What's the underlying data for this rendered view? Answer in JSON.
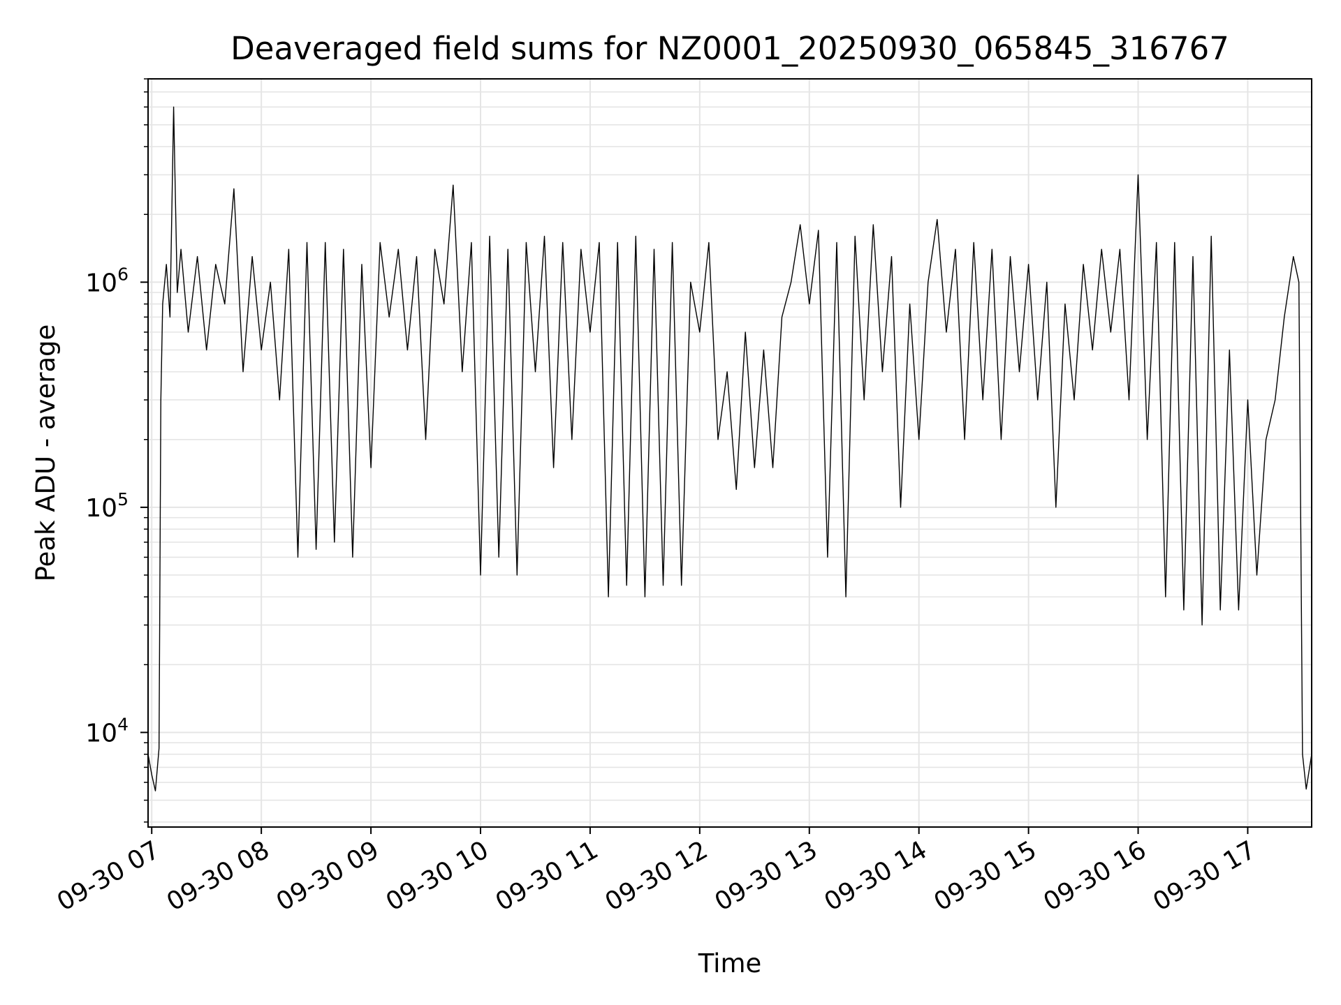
{
  "chart_data": {
    "type": "line",
    "title": "Deaveraged field sums for NZ0001_20250930_065845_316767",
    "xlabel": "Time",
    "ylabel": "Peak ADU - average",
    "y_scale": "log",
    "ylim": [
      3800,
      8000000
    ],
    "xlim": [
      "09-30 06:58",
      "09-30 17:35"
    ],
    "grid": true,
    "line_color": "#000000",
    "grid_color": "#e5e5e5",
    "x_ticks": [
      {
        "t": "09-30 07:00",
        "label": "09-30 07"
      },
      {
        "t": "09-30 08:00",
        "label": "09-30 08"
      },
      {
        "t": "09-30 09:00",
        "label": "09-30 09"
      },
      {
        "t": "09-30 10:00",
        "label": "09-30 10"
      },
      {
        "t": "09-30 11:00",
        "label": "09-30 11"
      },
      {
        "t": "09-30 12:00",
        "label": "09-30 12"
      },
      {
        "t": "09-30 13:00",
        "label": "09-30 13"
      },
      {
        "t": "09-30 14:00",
        "label": "09-30 14"
      },
      {
        "t": "09-30 15:00",
        "label": "09-30 15"
      },
      {
        "t": "09-30 16:00",
        "label": "09-30 16"
      },
      {
        "t": "09-30 17:00",
        "label": "09-30 17"
      }
    ],
    "y_ticks": [
      {
        "value": 10000,
        "base": "10",
        "exp": "4"
      },
      {
        "value": 100000,
        "base": "10",
        "exp": "5"
      },
      {
        "value": 1000000,
        "base": "10",
        "exp": "6"
      }
    ],
    "series": [
      {
        "points": [
          [
            "09-30 06:58",
            8000
          ],
          [
            "09-30 07:00",
            6500
          ],
          [
            "09-30 07:02",
            5500
          ],
          [
            "09-30 07:04",
            8500
          ],
          [
            "09-30 07:05",
            300000
          ],
          [
            "09-30 07:06",
            800000
          ],
          [
            "09-30 07:08",
            1200000
          ],
          [
            "09-30 07:10",
            700000
          ],
          [
            "09-30 07:12",
            6000000
          ],
          [
            "09-30 07:14",
            900000
          ],
          [
            "09-30 07:16",
            1400000
          ],
          [
            "09-30 07:20",
            600000
          ],
          [
            "09-30 07:25",
            1300000
          ],
          [
            "09-30 07:30",
            500000
          ],
          [
            "09-30 07:35",
            1200000
          ],
          [
            "09-30 07:40",
            800000
          ],
          [
            "09-30 07:45",
            2600000
          ],
          [
            "09-30 07:50",
            400000
          ],
          [
            "09-30 07:55",
            1300000
          ],
          [
            "09-30 08:00",
            500000
          ],
          [
            "09-30 08:05",
            1000000
          ],
          [
            "09-30 08:10",
            300000
          ],
          [
            "09-30 08:15",
            1400000
          ],
          [
            "09-30 08:20",
            60000
          ],
          [
            "09-30 08:25",
            1500000
          ],
          [
            "09-30 08:30",
            65000
          ],
          [
            "09-30 08:35",
            1500000
          ],
          [
            "09-30 08:40",
            70000
          ],
          [
            "09-30 08:45",
            1400000
          ],
          [
            "09-30 08:50",
            60000
          ],
          [
            "09-30 08:55",
            1200000
          ],
          [
            "09-30 09:00",
            150000
          ],
          [
            "09-30 09:05",
            1500000
          ],
          [
            "09-30 09:10",
            700000
          ],
          [
            "09-30 09:15",
            1400000
          ],
          [
            "09-30 09:20",
            500000
          ],
          [
            "09-30 09:25",
            1300000
          ],
          [
            "09-30 09:30",
            200000
          ],
          [
            "09-30 09:35",
            1400000
          ],
          [
            "09-30 09:40",
            800000
          ],
          [
            "09-30 09:45",
            2700000
          ],
          [
            "09-30 09:50",
            400000
          ],
          [
            "09-30 09:55",
            1500000
          ],
          [
            "09-30 10:00",
            50000
          ],
          [
            "09-30 10:05",
            1600000
          ],
          [
            "09-30 10:10",
            60000
          ],
          [
            "09-30 10:15",
            1400000
          ],
          [
            "09-30 10:20",
            50000
          ],
          [
            "09-30 10:25",
            1500000
          ],
          [
            "09-30 10:30",
            400000
          ],
          [
            "09-30 10:35",
            1600000
          ],
          [
            "09-30 10:40",
            150000
          ],
          [
            "09-30 10:45",
            1500000
          ],
          [
            "09-30 10:50",
            200000
          ],
          [
            "09-30 10:55",
            1400000
          ],
          [
            "09-30 11:00",
            600000
          ],
          [
            "09-30 11:05",
            1500000
          ],
          [
            "09-30 11:10",
            40000
          ],
          [
            "09-30 11:15",
            1500000
          ],
          [
            "09-30 11:20",
            45000
          ],
          [
            "09-30 11:25",
            1600000
          ],
          [
            "09-30 11:30",
            40000
          ],
          [
            "09-30 11:35",
            1400000
          ],
          [
            "09-30 11:40",
            45000
          ],
          [
            "09-30 11:45",
            1500000
          ],
          [
            "09-30 11:50",
            45000
          ],
          [
            "09-30 11:55",
            1000000
          ],
          [
            "09-30 12:00",
            600000
          ],
          [
            "09-30 12:05",
            1500000
          ],
          [
            "09-30 12:10",
            200000
          ],
          [
            "09-30 12:15",
            400000
          ],
          [
            "09-30 12:20",
            120000
          ],
          [
            "09-30 12:25",
            600000
          ],
          [
            "09-30 12:30",
            150000
          ],
          [
            "09-30 12:35",
            500000
          ],
          [
            "09-30 12:40",
            150000
          ],
          [
            "09-30 12:45",
            700000
          ],
          [
            "09-30 12:50",
            1000000
          ],
          [
            "09-30 12:55",
            1800000
          ],
          [
            "09-30 13:00",
            800000
          ],
          [
            "09-30 13:05",
            1700000
          ],
          [
            "09-30 13:10",
            60000
          ],
          [
            "09-30 13:15",
            1500000
          ],
          [
            "09-30 13:20",
            40000
          ],
          [
            "09-30 13:25",
            1600000
          ],
          [
            "09-30 13:30",
            300000
          ],
          [
            "09-30 13:35",
            1800000
          ],
          [
            "09-30 13:40",
            400000
          ],
          [
            "09-30 13:45",
            1300000
          ],
          [
            "09-30 13:50",
            100000
          ],
          [
            "09-30 13:55",
            800000
          ],
          [
            "09-30 14:00",
            200000
          ],
          [
            "09-30 14:05",
            1000000
          ],
          [
            "09-30 14:10",
            1900000
          ],
          [
            "09-30 14:15",
            600000
          ],
          [
            "09-30 14:20",
            1400000
          ],
          [
            "09-30 14:25",
            200000
          ],
          [
            "09-30 14:30",
            1500000
          ],
          [
            "09-30 14:35",
            300000
          ],
          [
            "09-30 14:40",
            1400000
          ],
          [
            "09-30 14:45",
            200000
          ],
          [
            "09-30 14:50",
            1300000
          ],
          [
            "09-30 14:55",
            400000
          ],
          [
            "09-30 15:00",
            1200000
          ],
          [
            "09-30 15:05",
            300000
          ],
          [
            "09-30 15:10",
            1000000
          ],
          [
            "09-30 15:15",
            100000
          ],
          [
            "09-30 15:20",
            800000
          ],
          [
            "09-30 15:25",
            300000
          ],
          [
            "09-30 15:30",
            1200000
          ],
          [
            "09-30 15:35",
            500000
          ],
          [
            "09-30 15:40",
            1400000
          ],
          [
            "09-30 15:45",
            600000
          ],
          [
            "09-30 15:50",
            1400000
          ],
          [
            "09-30 15:55",
            300000
          ],
          [
            "09-30 16:00",
            3000000
          ],
          [
            "09-30 16:05",
            200000
          ],
          [
            "09-30 16:10",
            1500000
          ],
          [
            "09-30 16:15",
            40000
          ],
          [
            "09-30 16:20",
            1500000
          ],
          [
            "09-30 16:25",
            35000
          ],
          [
            "09-30 16:30",
            1300000
          ],
          [
            "09-30 16:35",
            30000
          ],
          [
            "09-30 16:40",
            1600000
          ],
          [
            "09-30 16:45",
            35000
          ],
          [
            "09-30 16:50",
            500000
          ],
          [
            "09-30 16:55",
            35000
          ],
          [
            "09-30 17:00",
            300000
          ],
          [
            "09-30 17:05",
            50000
          ],
          [
            "09-30 17:10",
            200000
          ],
          [
            "09-30 17:15",
            300000
          ],
          [
            "09-30 17:20",
            700000
          ],
          [
            "09-30 17:25",
            1300000
          ],
          [
            "09-30 17:28",
            1000000
          ],
          [
            "09-30 17:30",
            8000
          ],
          [
            "09-30 17:32",
            5600
          ],
          [
            "09-30 17:35",
            8000
          ]
        ]
      }
    ]
  }
}
